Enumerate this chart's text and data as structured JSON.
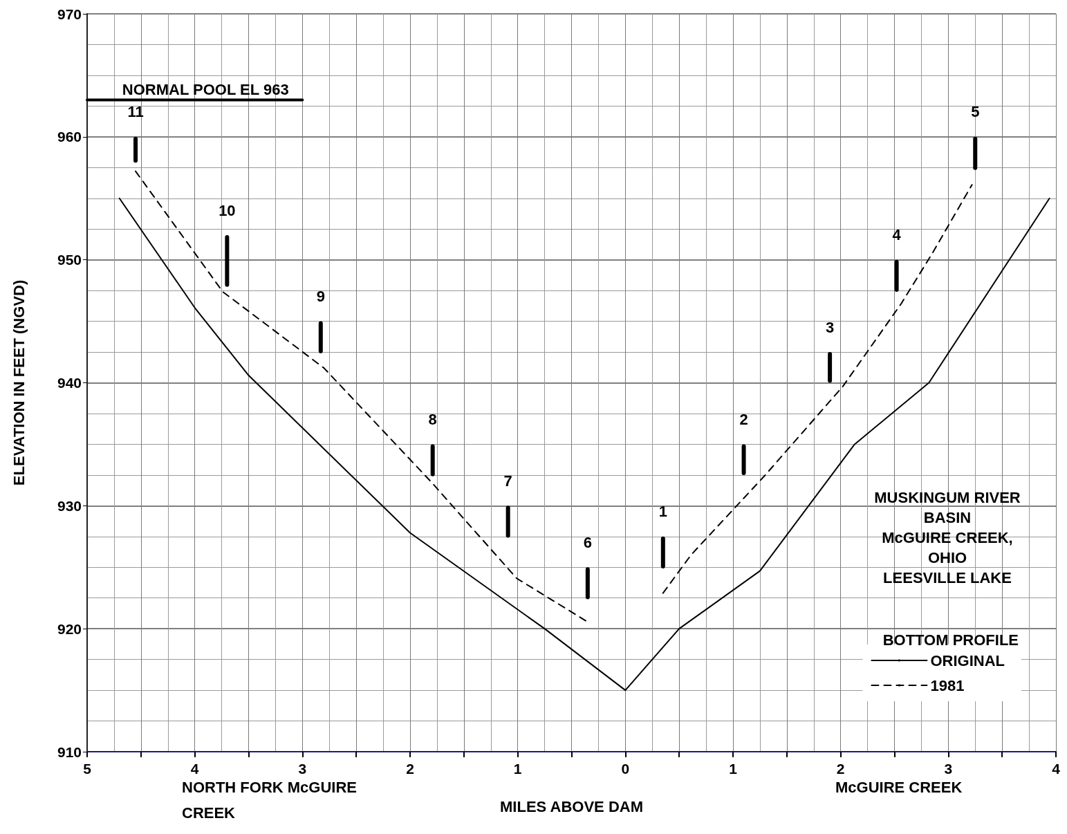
{
  "chart_data": {
    "type": "line",
    "ylabel": "ELEVATION IN FEET (NGVD)",
    "xlabel": "MILES ABOVE DAM",
    "legend_title": "BOTTOM PROFILE",
    "xlim": [
      -5,
      4
    ],
    "xticks": [
      {
        "value": -5,
        "label": "5"
      },
      {
        "value": -4.5,
        "label": null
      },
      {
        "value": -4,
        "label": "4"
      },
      {
        "value": -3.5,
        "label": null
      },
      {
        "value": -3,
        "label": "3"
      },
      {
        "value": -2.5,
        "label": null
      },
      {
        "value": -2,
        "label": "2"
      },
      {
        "value": -1.5,
        "label": null
      },
      {
        "value": -1,
        "label": "1"
      },
      {
        "value": -0.5,
        "label": null
      },
      0,
      {
        "value": 0.5,
        "label": null
      },
      1,
      {
        "value": 1.5,
        "label": null
      },
      2,
      {
        "value": 2.5,
        "label": null
      },
      3,
      {
        "value": 3.5,
        "label": null
      },
      4
    ],
    "ylim": [
      910,
      970
    ],
    "yticks": [
      910,
      920,
      930,
      940,
      950,
      960,
      970
    ],
    "grid": true,
    "legend": "bottom right",
    "marker": "none",
    "series": [
      {
        "name": "ORIGINAL",
        "color": "#000000",
        "line_style": "solid",
        "x": [
          -4.7,
          -4,
          -3.5,
          -2,
          -0.75,
          0,
          0.5,
          1.25,
          2.13,
          2.82,
          3.94
        ],
        "values": [
          955,
          946.1,
          940.6,
          927.8,
          920,
          915,
          920,
          924.7,
          935,
          940,
          955
        ]
      },
      {
        "name": "1981",
        "color": "#000000",
        "line_style": "dashed",
        "x": [
          -4.55,
          -3.74,
          -2.8,
          -1.8,
          -1.01,
          -0.34,
          null,
          0.35,
          0.61,
          1.3,
          2.02,
          2.56,
          2.85,
          3.22
        ],
        "values": [
          957.2,
          947.4,
          941.2,
          931.9,
          924.1,
          920.5,
          null,
          922.9,
          926,
          932.5,
          939.7,
          946.4,
          950.5,
          956.1
        ]
      },
      {
        "color": "#000000",
        "line_style": "solid",
        "x": [
          -5,
          -3
        ],
        "values": [
          963,
          963
        ]
      },
      {
        "type": "bar",
        "color": "#000000",
        "x": [
          -4.55,
          -3.7,
          -2.83,
          -1.79,
          -1.09,
          -0.35,
          0.35,
          1.1,
          1.9,
          2.52,
          3.25
        ],
        "base": [
          957.9,
          947.8,
          942.4,
          932.4,
          927.4,
          922.4,
          924.9,
          932.5,
          940,
          947.4,
          957.3
        ],
        "values": [
          2.1,
          4.2,
          2.6,
          2.6,
          2.6,
          2.6,
          2.6,
          2.5,
          2.5,
          2.6,
          2.7
        ]
      }
    ],
    "annotations": [
      "11",
      "10",
      "9",
      "8",
      "7",
      "6",
      "1",
      "2",
      "3",
      "4",
      "5",
      {
        "text": "NORMAL POOL EL 963",
        "x": -3.9,
        "y": 963
      },
      "NORTH FORK McGUIRE\nCREEK",
      "McGUIRE CREEK",
      "MUSKINGUM RIVER\nBASIN\nMcGUIRE CREEK,\nOHIO\nLEESVILLE LAKE"
    ]
  }
}
